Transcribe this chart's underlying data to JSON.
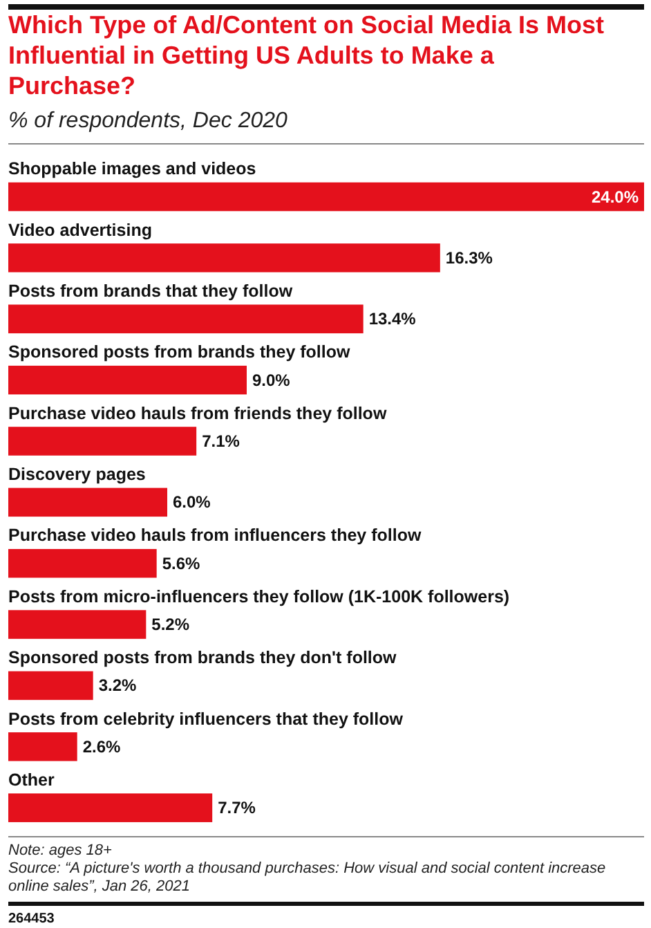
{
  "chart_data": {
    "type": "bar",
    "orientation": "horizontal",
    "title": "Which Type of Ad/Content on Social Media Is Most Influential in Getting US Adults to Make a Purchase?",
    "subtitle": "% of respondents, Dec 2020",
    "categories": [
      "Shoppable images and videos",
      "Video advertising",
      "Posts from brands that they follow",
      "Sponsored posts from brands they follow",
      "Purchase video hauls from friends they follow",
      "Discovery pages",
      "Purchase video hauls from influencers they follow",
      "Posts from micro-influencers they follow (1K-100K followers)",
      "Sponsored posts from brands they don't follow",
      "Posts from celebrity influencers that they follow",
      "Other"
    ],
    "values": [
      24.0,
      16.3,
      13.4,
      9.0,
      7.1,
      6.0,
      5.6,
      5.2,
      3.2,
      2.6,
      7.7
    ],
    "value_labels": [
      "24.0%",
      "16.3%",
      "13.4%",
      "9.0%",
      "7.1%",
      "6.0%",
      "5.6%",
      "5.2%",
      "3.2%",
      "2.6%",
      "7.7%"
    ],
    "color": "#e4111c",
    "annotations": [
      "Note: ages 18+",
      "Source: “A picture's worth a thousand purchases: How visual and social content increase online sales”, Jan 26, 2021",
      "264453"
    ]
  }
}
